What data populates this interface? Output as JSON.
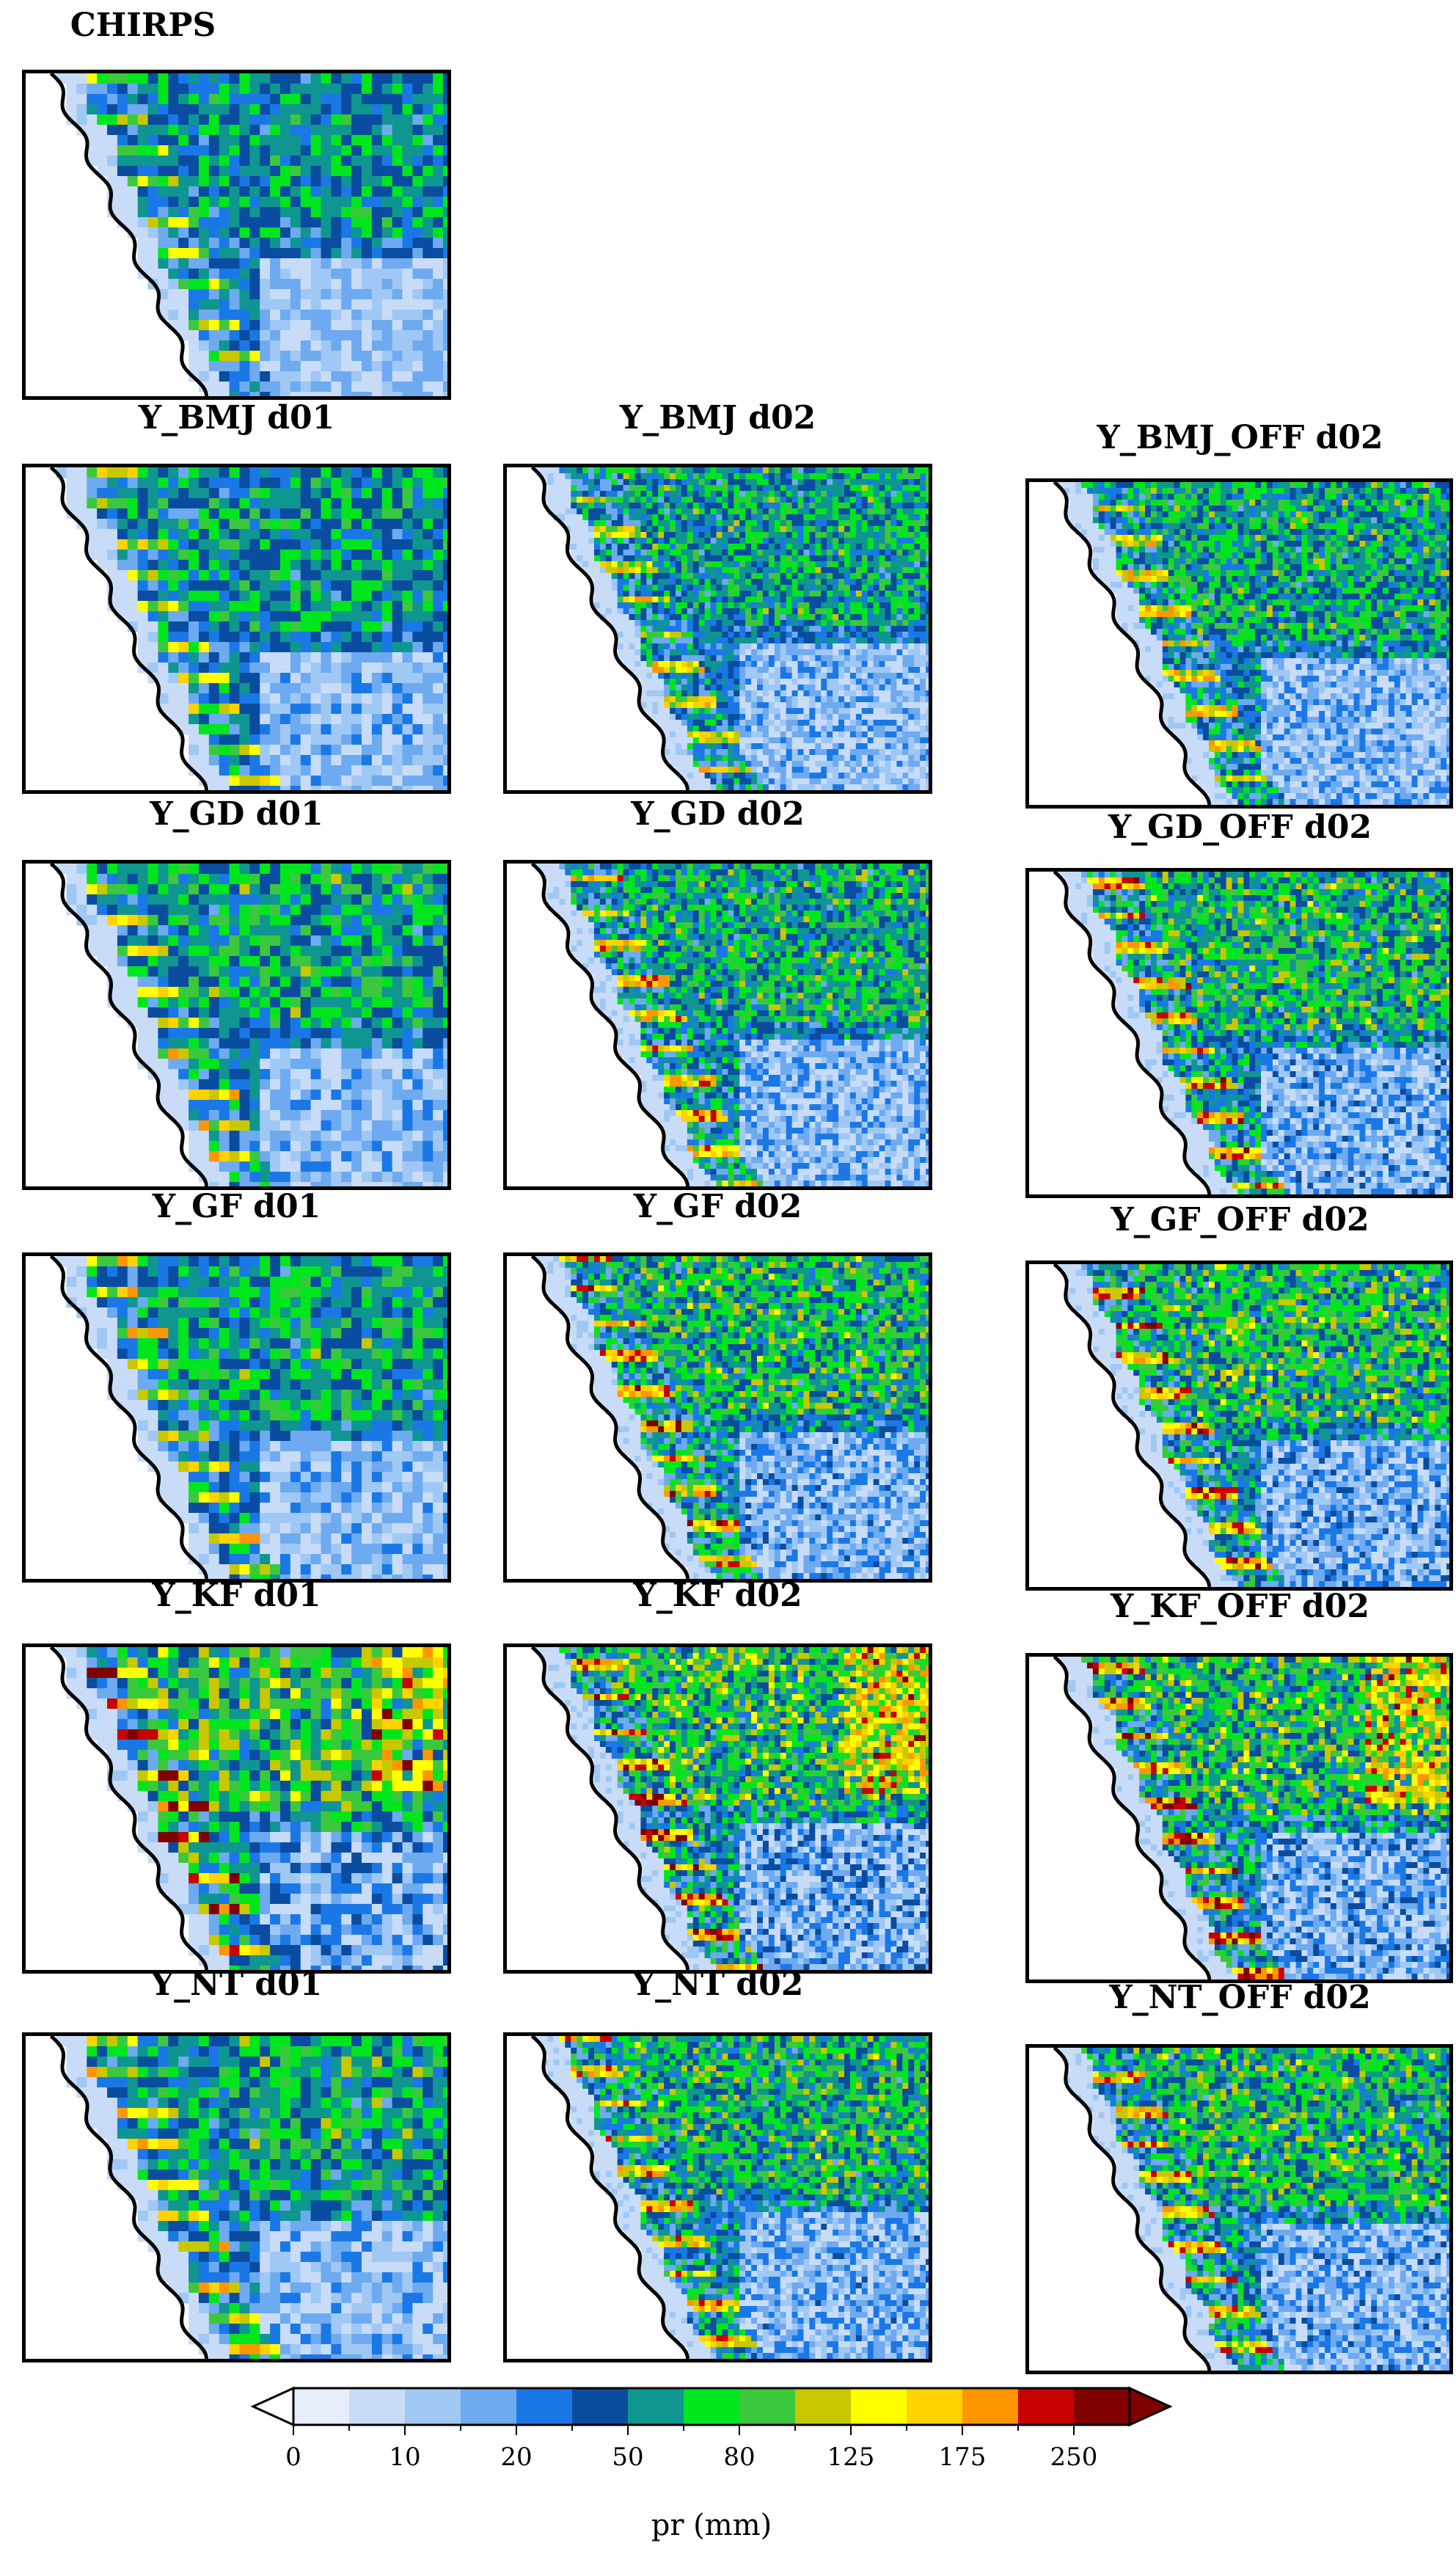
{
  "panels": [
    {
      "id": "chirps",
      "title": "CHIRPS",
      "intensity": 1.0,
      "hotspots": []
    },
    {
      "id": "y-bmj-d01",
      "title": "Y_BMJ d01",
      "intensity": 1.1,
      "hotspots": []
    },
    {
      "id": "y-bmj-d02",
      "title": "Y_BMJ d02",
      "intensity": 1.2,
      "hotspots": []
    },
    {
      "id": "y-bmj-off-d02",
      "title": "Y_BMJ_OFF d02",
      "intensity": 1.25,
      "hotspots": []
    },
    {
      "id": "y-gd-d01",
      "title": "Y_GD d01",
      "intensity": 1.2,
      "hotspots": []
    },
    {
      "id": "y-gd-d02",
      "title": "Y_GD d02",
      "intensity": 1.3,
      "hotspots": []
    },
    {
      "id": "y-gd-off-d02",
      "title": "Y_GD_OFF d02",
      "intensity": 1.4,
      "hotspots": []
    },
    {
      "id": "y-gf-d01",
      "title": "Y_GF d01",
      "intensity": 1.2,
      "hotspots": []
    },
    {
      "id": "y-gf-d02",
      "title": "Y_GF d02",
      "intensity": 1.4,
      "hotspots": []
    },
    {
      "id": "y-gf-off-d02",
      "title": "Y_GF_OFF d02",
      "intensity": 1.45,
      "hotspots": []
    },
    {
      "id": "y-kf-d01",
      "title": "Y_KF d01",
      "intensity": 1.6,
      "hotspots": []
    },
    {
      "id": "y-kf-d02",
      "title": "Y_KF d02",
      "intensity": 1.55,
      "hotspots": []
    },
    {
      "id": "y-kf-off-d02",
      "title": "Y_KF_OFF d02",
      "intensity": 1.5,
      "hotspots": []
    },
    {
      "id": "y-nt-d01",
      "title": "Y_NT d01",
      "intensity": 1.25,
      "hotspots": []
    },
    {
      "id": "y-nt-d02",
      "title": "Y_NT d02",
      "intensity": 1.35,
      "hotspots": []
    },
    {
      "id": "y-nt-off-d02",
      "title": "Y_NT_OFF d02",
      "intensity": 1.4,
      "hotspots": []
    }
  ],
  "colorbar": {
    "title": "pr (mm)",
    "tick_labels": [
      "0",
      "10",
      "20",
      "50",
      "80",
      "125",
      "175",
      "250"
    ],
    "colors": [
      "#e6eefb",
      "#c8dcf8",
      "#a0c8f4",
      "#6eaaf0",
      "#1a78e6",
      "#0a4da0",
      "#0f9690",
      "#00e61e",
      "#3cc83c",
      "#c8c800",
      "#ffff00",
      "#ffd200",
      "#ff9600",
      "#c80000",
      "#800000"
    ],
    "under_color": "#ffffff",
    "over_color": "#800000"
  }
}
